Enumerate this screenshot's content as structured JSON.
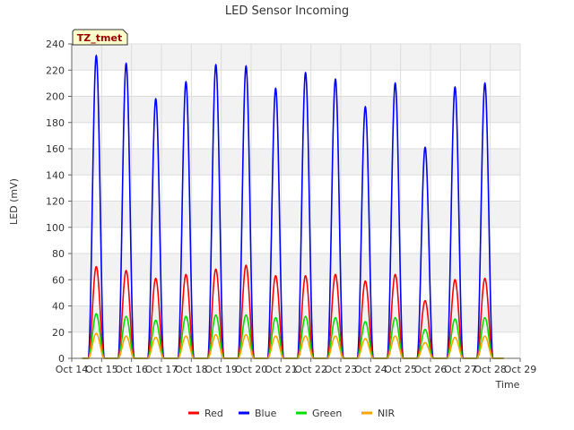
{
  "chart_data": {
    "type": "line",
    "title": "LED Sensor Incoming",
    "xlabel": "Time",
    "ylabel": "LED (mV)",
    "ylim": [
      0,
      240
    ],
    "yticks": [
      0,
      20,
      40,
      60,
      80,
      100,
      120,
      140,
      160,
      180,
      200,
      220,
      240
    ],
    "xlim": [
      14,
      29
    ],
    "xticks": [
      {
        "v": 14,
        "label": "Oct 14"
      },
      {
        "v": 15,
        "label": "Oct 15"
      },
      {
        "v": 16,
        "label": "Oct 16"
      },
      {
        "v": 17,
        "label": "Oct 17"
      },
      {
        "v": 18,
        "label": "Oct 18"
      },
      {
        "v": 19,
        "label": "Oct 19"
      },
      {
        "v": 20,
        "label": "Oct 20"
      },
      {
        "v": 21,
        "label": "Oct 21"
      },
      {
        "v": 22,
        "label": "Oct 22"
      },
      {
        "v": 23,
        "label": "Oct 23"
      },
      {
        "v": 24,
        "label": "Oct 24"
      },
      {
        "v": 25,
        "label": "Oct 25"
      },
      {
        "v": 26,
        "label": "Oct 26"
      },
      {
        "v": 27,
        "label": "Oct 27"
      },
      {
        "v": 28,
        "label": "Oct 28"
      },
      {
        "v": 29,
        "label": "Oct 29"
      }
    ],
    "x_start": 14.35,
    "x_end": 28.45,
    "day_peak_centers": [
      14.82,
      15.82,
      16.81,
      17.82,
      18.82,
      19.83,
      20.82,
      21.82,
      22.82,
      23.82,
      24.82,
      25.82,
      26.82,
      27.82
    ],
    "series": [
      {
        "name": "Red",
        "color": "#ff0000",
        "peaks": [
          70,
          67,
          61,
          64,
          68,
          71,
          63,
          63,
          64,
          59,
          64,
          44,
          60,
          61
        ]
      },
      {
        "name": "Blue",
        "color": "#0000ff",
        "peaks": [
          231,
          225,
          198,
          211,
          224,
          223,
          206,
          218,
          213,
          192,
          210,
          161,
          207,
          210
        ]
      },
      {
        "name": "Green",
        "color": "#00dd00",
        "peaks": [
          34,
          32,
          29,
          32,
          33,
          33,
          31,
          32,
          31,
          28,
          31,
          22,
          30,
          31
        ]
      },
      {
        "name": "NIR",
        "color": "#ffa500",
        "peaks": [
          19,
          17,
          16,
          17,
          18,
          18,
          17,
          17,
          17,
          15,
          17,
          12,
          16,
          17
        ]
      }
    ],
    "legend_position": "bottom-center",
    "grid": true,
    "annotation": "TZ_tmet"
  }
}
